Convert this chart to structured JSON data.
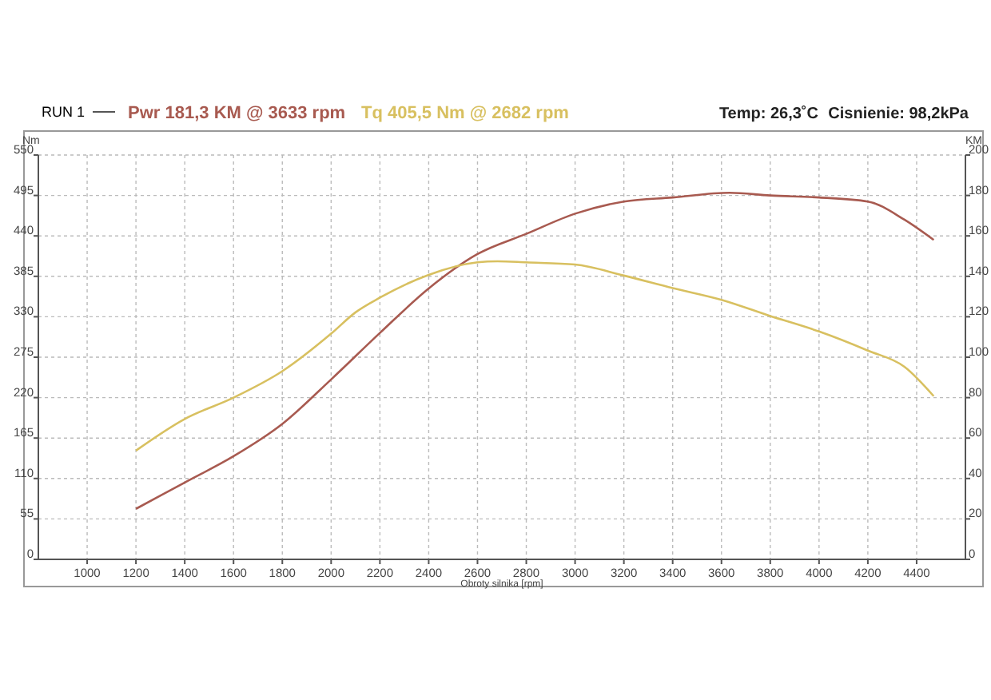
{
  "chart_data": {
    "type": "line",
    "legend_title": "RUN 1",
    "xlabel": "Obroty silnika [rpm]",
    "ylabel": "Nm",
    "y2label": "KM",
    "annotations": [
      "Temp: 26,3˚C",
      "Cisnienie: 98,2kPa"
    ],
    "series": [
      {
        "name": "Pwr  181,3 KM @ 3633 rpm",
        "color": "#a85a50",
        "axis": "y2",
        "x": [
          1200,
          1400,
          1600,
          1800,
          2000,
          2200,
          2400,
          2600,
          2800,
          3000,
          3200,
          3400,
          3633,
          3800,
          4000,
          4200,
          4350,
          4470
        ],
        "values": [
          25,
          38,
          51,
          67,
          89,
          112,
          134,
          151,
          161,
          171,
          177,
          179,
          181.3,
          180,
          179,
          177,
          168,
          158
        ]
      },
      {
        "name": "Tq 405,5 Nm @ 2682 rpm",
        "color": "#d8c060",
        "axis": "y",
        "x": [
          1200,
          1400,
          1600,
          1800,
          2000,
          2100,
          2200,
          2400,
          2600,
          2682,
          2800,
          3000,
          3200,
          3400,
          3600,
          3800,
          4000,
          4200,
          4350,
          4470
        ],
        "values": [
          148,
          191,
          220,
          256,
          307,
          336,
          356,
          387,
          404,
          405.5,
          404,
          401,
          386,
          369,
          353,
          331,
          310,
          284,
          262,
          222
        ]
      }
    ],
    "xlim": [
      800,
      4600
    ],
    "xticks": [
      1000,
      1200,
      1400,
      1600,
      1800,
      2000,
      2200,
      2400,
      2600,
      2800,
      3000,
      3200,
      3400,
      3600,
      3800,
      4000,
      4200,
      4400
    ],
    "ylim": [
      0,
      550
    ],
    "yticks": [
      0,
      55,
      110,
      165,
      220,
      275,
      330,
      385,
      440,
      495,
      550
    ],
    "y2lim": [
      0,
      200
    ],
    "y2ticks": [
      0,
      20,
      40,
      60,
      80,
      100,
      120,
      140,
      160,
      180,
      200
    ],
    "grid": true,
    "legend": "top",
    "marker": "none",
    "line_style": "solid"
  }
}
